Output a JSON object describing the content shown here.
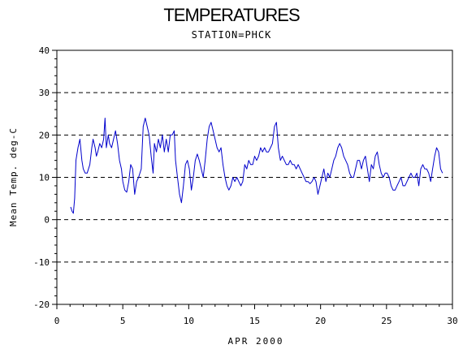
{
  "chart_data": {
    "type": "line",
    "title": "TEMPERATURES",
    "subtitle": "STATION=PHCK",
    "xlabel": "APR 2000",
    "ylabel": "Mean Temp. deg-C",
    "xlim": [
      0,
      30
    ],
    "ylim": [
      -20,
      40
    ],
    "x_ticks": [
      "0",
      "5",
      "10",
      "15",
      "20",
      "25",
      "30"
    ],
    "y_ticks": [
      "-20",
      "-10",
      "0",
      "10",
      "20",
      "30",
      "40"
    ],
    "gridlines": "horizontal-dashed",
    "colors": {
      "line": "#0000cc",
      "grid": "#000000",
      "axis": "#000000"
    },
    "series": [
      {
        "values": [
          [
            1.05,
            3
          ],
          [
            1.15,
            2
          ],
          [
            1.25,
            1.5
          ],
          [
            1.35,
            5
          ],
          [
            1.45,
            14
          ],
          [
            1.6,
            17
          ],
          [
            1.75,
            19
          ],
          [
            1.9,
            14
          ],
          [
            2.0,
            12
          ],
          [
            2.15,
            11
          ],
          [
            2.3,
            11
          ],
          [
            2.5,
            13
          ],
          [
            2.65,
            17
          ],
          [
            2.75,
            19
          ],
          [
            2.9,
            17
          ],
          [
            3.0,
            15
          ],
          [
            3.1,
            16
          ],
          [
            3.25,
            18
          ],
          [
            3.4,
            17
          ],
          [
            3.55,
            19
          ],
          [
            3.65,
            24
          ],
          [
            3.75,
            17
          ],
          [
            3.9,
            20
          ],
          [
            4.0,
            18
          ],
          [
            4.15,
            17
          ],
          [
            4.3,
            19
          ],
          [
            4.45,
            21
          ],
          [
            4.6,
            18
          ],
          [
            4.75,
            14
          ],
          [
            4.9,
            12
          ],
          [
            5.0,
            9
          ],
          [
            5.15,
            7
          ],
          [
            5.3,
            6.5
          ],
          [
            5.45,
            9
          ],
          [
            5.6,
            13
          ],
          [
            5.75,
            12
          ],
          [
            5.9,
            6
          ],
          [
            6.05,
            9
          ],
          [
            6.2,
            10
          ],
          [
            6.4,
            12
          ],
          [
            6.55,
            22
          ],
          [
            6.7,
            24
          ],
          [
            6.85,
            22
          ],
          [
            7.0,
            20
          ],
          [
            7.15,
            15
          ],
          [
            7.3,
            11
          ],
          [
            7.4,
            18
          ],
          [
            7.55,
            16
          ],
          [
            7.7,
            19
          ],
          [
            7.85,
            17
          ],
          [
            8.0,
            20
          ],
          [
            8.15,
            16
          ],
          [
            8.3,
            19
          ],
          [
            8.45,
            16
          ],
          [
            8.6,
            20
          ],
          [
            8.75,
            20
          ],
          [
            8.9,
            21
          ],
          [
            9.0,
            14
          ],
          [
            9.15,
            10
          ],
          [
            9.3,
            6
          ],
          [
            9.45,
            4
          ],
          [
            9.6,
            8
          ],
          [
            9.75,
            13
          ],
          [
            9.9,
            14
          ],
          [
            10.05,
            12
          ],
          [
            10.2,
            7
          ],
          [
            10.35,
            10
          ],
          [
            10.5,
            14
          ],
          [
            10.65,
            15.5
          ],
          [
            10.8,
            14
          ],
          [
            10.95,
            12
          ],
          [
            11.1,
            10
          ],
          [
            11.25,
            14
          ],
          [
            11.4,
            19
          ],
          [
            11.55,
            22
          ],
          [
            11.7,
            23
          ],
          [
            11.85,
            21
          ],
          [
            12.0,
            19
          ],
          [
            12.15,
            17
          ],
          [
            12.3,
            16
          ],
          [
            12.45,
            17
          ],
          [
            12.6,
            13
          ],
          [
            12.75,
            10
          ],
          [
            12.9,
            8
          ],
          [
            13.05,
            7
          ],
          [
            13.2,
            8
          ],
          [
            13.35,
            10
          ],
          [
            13.5,
            9
          ],
          [
            13.65,
            10
          ],
          [
            13.8,
            9
          ],
          [
            13.95,
            8
          ],
          [
            14.1,
            9
          ],
          [
            14.25,
            13
          ],
          [
            14.4,
            12
          ],
          [
            14.55,
            14
          ],
          [
            14.7,
            13
          ],
          [
            14.85,
            13
          ],
          [
            15.0,
            15
          ],
          [
            15.15,
            14
          ],
          [
            15.3,
            15
          ],
          [
            15.45,
            17
          ],
          [
            15.6,
            16
          ],
          [
            15.75,
            17
          ],
          [
            15.9,
            16
          ],
          [
            16.05,
            16
          ],
          [
            16.2,
            17
          ],
          [
            16.35,
            18
          ],
          [
            16.5,
            22
          ],
          [
            16.65,
            23
          ],
          [
            16.8,
            17
          ],
          [
            16.95,
            14
          ],
          [
            17.1,
            15
          ],
          [
            17.25,
            14
          ],
          [
            17.4,
            13
          ],
          [
            17.55,
            13
          ],
          [
            17.7,
            14
          ],
          [
            17.85,
            13
          ],
          [
            18.0,
            13
          ],
          [
            18.15,
            12
          ],
          [
            18.3,
            13
          ],
          [
            18.45,
            12
          ],
          [
            18.6,
            11
          ],
          [
            18.75,
            10
          ],
          [
            18.9,
            9
          ],
          [
            19.05,
            9
          ],
          [
            19.2,
            8.5
          ],
          [
            19.35,
            9
          ],
          [
            19.5,
            10
          ],
          [
            19.65,
            9
          ],
          [
            19.8,
            6
          ],
          [
            19.95,
            8
          ],
          [
            20.1,
            10
          ],
          [
            20.25,
            12
          ],
          [
            20.4,
            9
          ],
          [
            20.55,
            11
          ],
          [
            20.7,
            10
          ],
          [
            20.85,
            12
          ],
          [
            21.0,
            14
          ],
          [
            21.15,
            15
          ],
          [
            21.3,
            17
          ],
          [
            21.45,
            18
          ],
          [
            21.6,
            17
          ],
          [
            21.75,
            15
          ],
          [
            21.9,
            14
          ],
          [
            22.05,
            13
          ],
          [
            22.2,
            11
          ],
          [
            22.35,
            10
          ],
          [
            22.5,
            10
          ],
          [
            22.65,
            12
          ],
          [
            22.8,
            14
          ],
          [
            22.95,
            14
          ],
          [
            23.1,
            12
          ],
          [
            23.25,
            14
          ],
          [
            23.4,
            15
          ],
          [
            23.55,
            12
          ],
          [
            23.7,
            9
          ],
          [
            23.85,
            13
          ],
          [
            24.0,
            12
          ],
          [
            24.15,
            15
          ],
          [
            24.3,
            16
          ],
          [
            24.45,
            13
          ],
          [
            24.6,
            11
          ],
          [
            24.75,
            10
          ],
          [
            24.9,
            11
          ],
          [
            25.05,
            11
          ],
          [
            25.2,
            10
          ],
          [
            25.35,
            8
          ],
          [
            25.5,
            7
          ],
          [
            25.65,
            7
          ],
          [
            25.8,
            8
          ],
          [
            25.95,
            9
          ],
          [
            26.1,
            10
          ],
          [
            26.25,
            8
          ],
          [
            26.4,
            8
          ],
          [
            26.55,
            9
          ],
          [
            26.7,
            10
          ],
          [
            26.85,
            11
          ],
          [
            27.0,
            10
          ],
          [
            27.15,
            10
          ],
          [
            27.3,
            11
          ],
          [
            27.45,
            8
          ],
          [
            27.6,
            12
          ],
          [
            27.75,
            13
          ],
          [
            27.9,
            12
          ],
          [
            28.05,
            12
          ],
          [
            28.2,
            11
          ],
          [
            28.35,
            9
          ],
          [
            28.5,
            12
          ],
          [
            28.65,
            15
          ],
          [
            28.8,
            17
          ],
          [
            28.95,
            16
          ],
          [
            29.1,
            12
          ],
          [
            29.25,
            11
          ]
        ]
      }
    ]
  }
}
